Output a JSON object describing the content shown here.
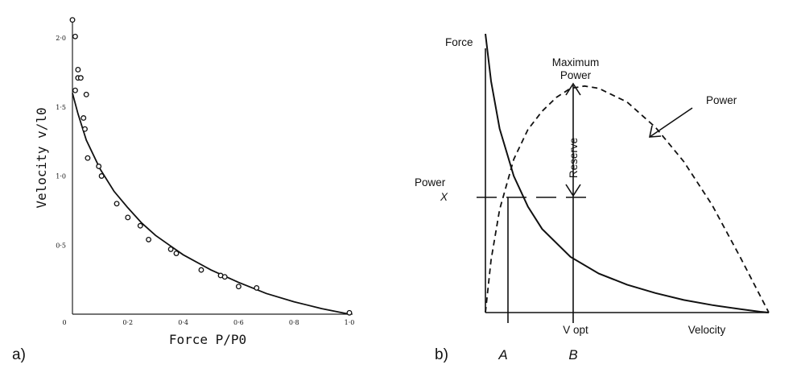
{
  "chart_data": [
    {
      "type": "scatter",
      "panel_label": "a)",
      "xlabel": "Force P/P0",
      "ylabel": "Velocity v/l0",
      "xlim": [
        0,
        1.0
      ],
      "ylim": [
        0,
        2.1
      ],
      "x_ticks": [
        "0",
        "0·2",
        "0·4",
        "0·6",
        "0·8",
        "1·0"
      ],
      "x_tick_values": [
        0,
        0.2,
        0.4,
        0.6,
        0.8,
        1.0
      ],
      "y_ticks": [
        "0·5",
        "1·0",
        "1·5",
        "2·0"
      ],
      "y_tick_values": [
        0.5,
        1.0,
        1.5,
        2.0
      ],
      "grid": false,
      "points": [
        {
          "x": 0.0,
          "y": 2.13
        },
        {
          "x": 0.01,
          "y": 2.01
        },
        {
          "x": 0.02,
          "y": 1.77
        },
        {
          "x": 0.02,
          "y": 1.71
        },
        {
          "x": 0.03,
          "y": 1.71
        },
        {
          "x": 0.01,
          "y": 1.62
        },
        {
          "x": 0.05,
          "y": 1.59
        },
        {
          "x": 0.04,
          "y": 1.42
        },
        {
          "x": 0.045,
          "y": 1.34
        },
        {
          "x": 0.055,
          "y": 1.13
        },
        {
          "x": 0.095,
          "y": 1.07
        },
        {
          "x": 0.105,
          "y": 1.0
        },
        {
          "x": 0.16,
          "y": 0.8
        },
        {
          "x": 0.2,
          "y": 0.7
        },
        {
          "x": 0.245,
          "y": 0.64
        },
        {
          "x": 0.275,
          "y": 0.54
        },
        {
          "x": 0.355,
          "y": 0.47
        },
        {
          "x": 0.375,
          "y": 0.44
        },
        {
          "x": 0.465,
          "y": 0.32
        },
        {
          "x": 0.535,
          "y": 0.28
        },
        {
          "x": 0.55,
          "y": 0.27
        },
        {
          "x": 0.6,
          "y": 0.2
        },
        {
          "x": 0.665,
          "y": 0.19
        },
        {
          "x": 1.0,
          "y": 0.01
        }
      ],
      "fit_curve": {
        "x": [
          0,
          0.02,
          0.05,
          0.1,
          0.15,
          0.2,
          0.25,
          0.3,
          0.35,
          0.4,
          0.5,
          0.6,
          0.7,
          0.8,
          0.9,
          1.0
        ],
        "y": [
          1.6,
          1.45,
          1.26,
          1.05,
          0.89,
          0.77,
          0.66,
          0.57,
          0.5,
          0.43,
          0.32,
          0.23,
          0.15,
          0.09,
          0.04,
          0.0
        ]
      }
    },
    {
      "type": "line",
      "panel_label": "b)",
      "xlabel": "Velocity",
      "ylabel": "Force",
      "x_ticks": [
        "V opt"
      ],
      "grid": false,
      "series": [
        {
          "name": "Force",
          "style": "solid",
          "x": [
            0,
            0.02,
            0.05,
            0.1,
            0.15,
            0.2,
            0.3,
            0.4,
            0.5,
            0.6,
            0.7,
            0.8,
            0.9,
            0.97,
            1.0
          ],
          "y": [
            1.0,
            0.83,
            0.66,
            0.49,
            0.38,
            0.3,
            0.2,
            0.14,
            0.1,
            0.07,
            0.045,
            0.027,
            0.012,
            0.003,
            0.0
          ]
        },
        {
          "name": "Power",
          "style": "dashed",
          "x": [
            0,
            0.02,
            0.05,
            0.1,
            0.15,
            0.2,
            0.25,
            0.3,
            0.35,
            0.4,
            0.5,
            0.6,
            0.7,
            0.8,
            0.9,
            1.0
          ],
          "y": [
            0.0,
            0.23,
            0.45,
            0.67,
            0.8,
            0.88,
            0.94,
            0.98,
            0.99,
            0.98,
            0.92,
            0.81,
            0.66,
            0.47,
            0.24,
            0.0
          ]
        }
      ],
      "annotations": {
        "max_power": "Maximum\nPower",
        "power_curve": "Power",
        "reserve": "Reserve",
        "power_x": "Power",
        "x_symbol": "X",
        "v_opt": "V opt",
        "point_a": "A",
        "point_b": "B"
      },
      "reference_values": {
        "power_x_level": 0.47,
        "a_velocity": 0.08,
        "v_opt": 0.31
      }
    }
  ]
}
